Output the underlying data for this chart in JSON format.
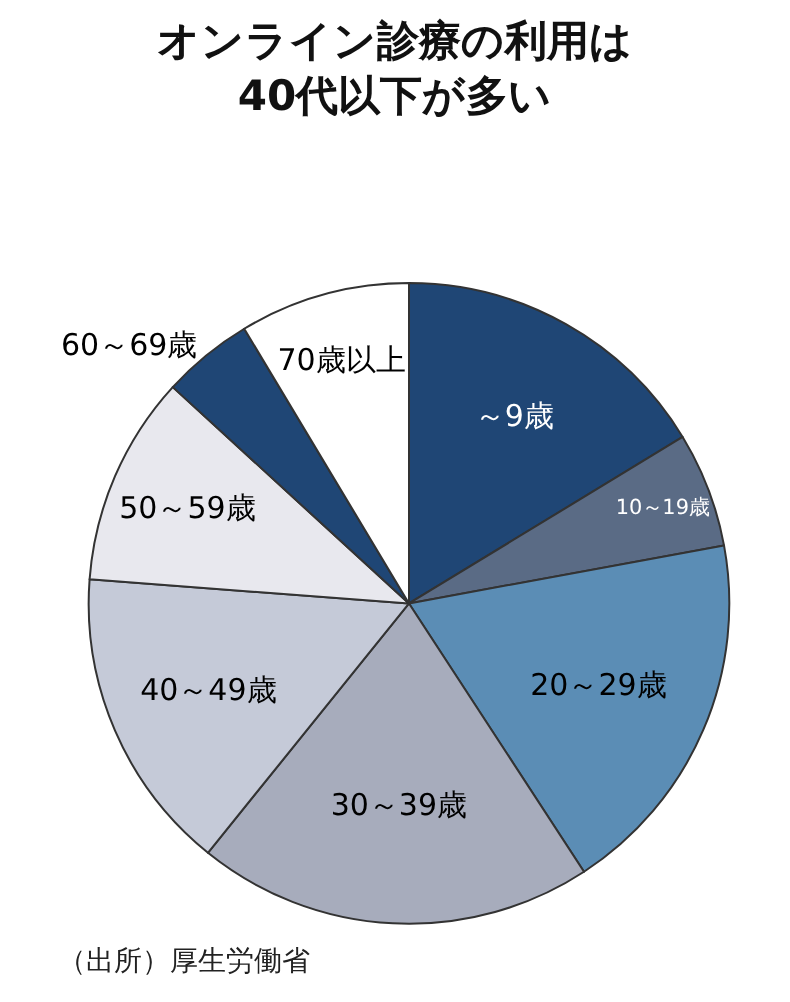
{
  "chart_data": {
    "type": "pie",
    "title": "オンライン診療の利用は\n40代以下が多い",
    "categories": [
      "～9歳",
      "10～19歳",
      "20～29歳",
      "30～39歳",
      "40～49歳",
      "50～59歳",
      "60～69歳",
      "70歳以上"
    ],
    "values": [
      16.3,
      5.8,
      18.7,
      20.0,
      15.4,
      10.6,
      4.6,
      8.6
    ],
    "colors": [
      "#1f4675",
      "#5a6b85",
      "#5b8db5",
      "#a7acbc",
      "#c5cad8",
      "#e8e8ee",
      "#1f4675",
      "#ffffff"
    ],
    "annotations": [
      "（出所）厚生労働省"
    ],
    "legend": false
  }
}
